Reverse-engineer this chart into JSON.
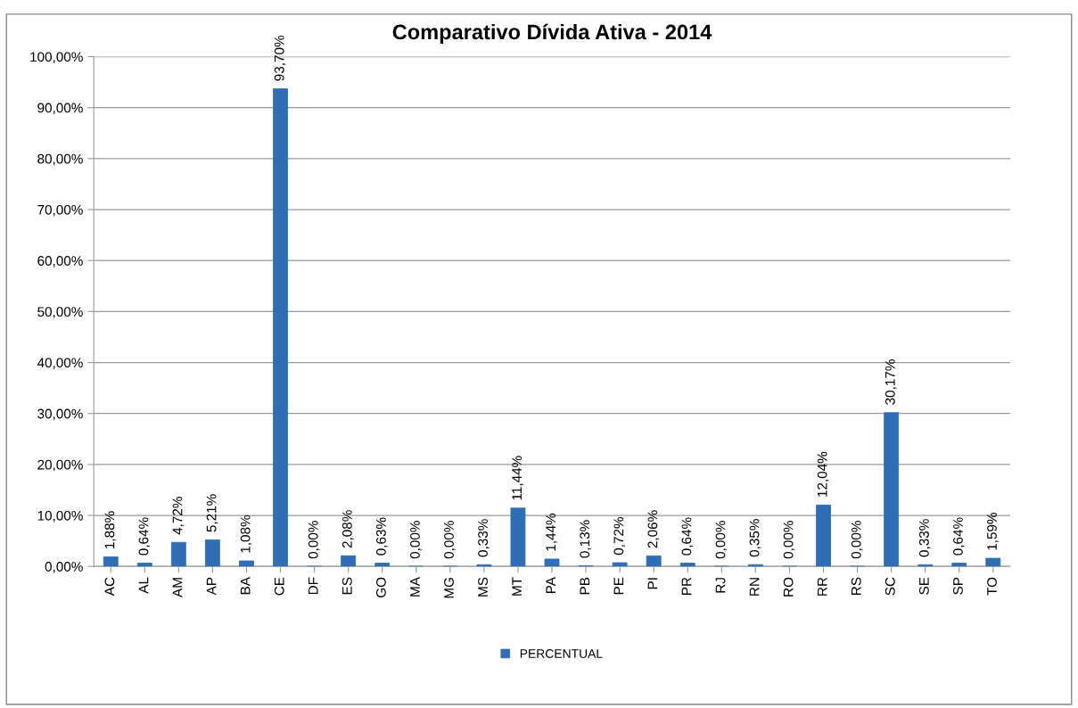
{
  "chart_data": {
    "type": "bar",
    "title": "Comparativo Dívida Ativa - 2014",
    "categories": [
      "AC",
      "AL",
      "AM",
      "AP",
      "BA",
      "CE",
      "DF",
      "ES",
      "GO",
      "MA",
      "MG",
      "MS",
      "MT",
      "PA",
      "PB",
      "PE",
      "PI",
      "PR",
      "RJ",
      "RN",
      "RO",
      "RR",
      "RS",
      "SC",
      "SE",
      "SP",
      "TO"
    ],
    "series": [
      {
        "name": "PERCENTUAL",
        "color": "#2f6db5",
        "values": [
          1.88,
          0.64,
          4.72,
          5.21,
          1.08,
          93.7,
          0.0,
          2.08,
          0.63,
          0.0,
          0.0,
          0.33,
          11.44,
          1.44,
          0.13,
          0.72,
          2.06,
          0.64,
          0.0,
          0.35,
          0.0,
          12.04,
          0.0,
          30.17,
          0.33,
          0.64,
          1.59
        ],
        "value_labels": [
          "1,88%",
          "0,64%",
          "4,72%",
          "5,21%",
          "1,08%",
          "93,70%",
          "0,00%",
          "2,08%",
          "0,63%",
          "0,00%",
          "0,00%",
          "0,33%",
          "11,44%",
          "1,44%",
          "0,13%",
          "0,72%",
          "2,06%",
          "0,64%",
          "0,00%",
          "0,35%",
          "0,00%",
          "12,04%",
          "0,00%",
          "30,17%",
          "0,33%",
          "0,64%",
          "1,59%"
        ]
      }
    ],
    "ylim": [
      0,
      100
    ],
    "yticks": [
      {
        "value": 0,
        "label": "0,00%"
      },
      {
        "value": 10,
        "label": "10,00%"
      },
      {
        "value": 20,
        "label": "20,00%"
      },
      {
        "value": 30,
        "label": "30,00%"
      },
      {
        "value": 40,
        "label": "40,00%"
      },
      {
        "value": 50,
        "label": "50,00%"
      },
      {
        "value": 60,
        "label": "60,00%"
      },
      {
        "value": 70,
        "label": "70,00%"
      },
      {
        "value": 80,
        "label": "80,00%"
      },
      {
        "value": 90,
        "label": "90,00%"
      },
      {
        "value": 100,
        "label": "100,00%"
      }
    ],
    "grid": "y",
    "legend": "bottom"
  }
}
